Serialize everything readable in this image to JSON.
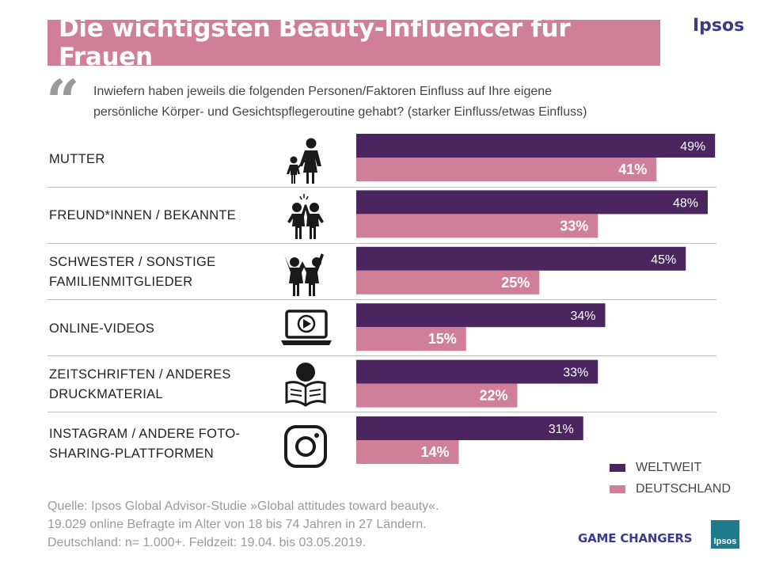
{
  "title": "Die wichtigsten Beauty-Influencer für Frauen",
  "brand": "Ipsos",
  "question": {
    "line1": "Inwiefern haben jeweils die folgenden Personen/Faktoren Einfluss auf Ihre eigene",
    "line2": "persönliche Körper- und Gesichtspflegeroutine gehabt?  (starker Einfluss/etwas Einfluss)"
  },
  "rows": [
    {
      "label1": "MUTTER",
      "label2": "",
      "icon": "mother-child-icon"
    },
    {
      "label1": "FREUND*INNEN / BEKANNTE",
      "label2": "",
      "icon": "friends-high-five-icon"
    },
    {
      "label1": "SCHWESTER / SONSTIGE",
      "label2": "FAMILIENMITGLIEDER",
      "icon": "sisters-icon"
    },
    {
      "label1": "ONLINE-VIDEOS",
      "label2": "",
      "icon": "laptop-video-icon"
    },
    {
      "label1": "ZEITSCHRIFTEN  / ANDERES",
      "label2": "DRUCKMATERIAL",
      "icon": "reader-book-icon"
    },
    {
      "label1": "INSTAGRAM / ANDERE FOTO-",
      "label2": "SHARING-PLATTFORMEN",
      "icon": "instagram-icon"
    }
  ],
  "chart_data": {
    "type": "bar",
    "orientation": "horizontal",
    "categories": [
      "MUTTER",
      "FREUND*INNEN / BEKANNTE",
      "SCHWESTER / SONSTIGE FAMILIENMITGLIEDER",
      "ONLINE-VIDEOS",
      "ZEITSCHRIFTEN / ANDERES DRUCKMATERIAL",
      "INSTAGRAM / ANDERE FOTO-SHARING-PLATTFORMEN"
    ],
    "series": [
      {
        "name": "WELTWEIT",
        "values": [
          49,
          48,
          45,
          34,
          33,
          31
        ],
        "labels": [
          "49%",
          "48%",
          "45%",
          "34%",
          "33%",
          "31%"
        ],
        "color": "#4a2560"
      },
      {
        "name": "DEUTSCHLAND",
        "values": [
          41,
          33,
          25,
          15,
          22,
          14
        ],
        "labels": [
          "41%",
          "33%",
          "25%",
          "15%",
          "22%",
          "14%"
        ],
        "color": "#d07f98"
      }
    ],
    "unit": "%",
    "xlim": [
      0,
      100
    ]
  },
  "legend": {
    "weltweit": "WELTWEIT",
    "deutschland": "DEUTSCHLAND"
  },
  "source": {
    "line1": "Quelle: Ipsos Global Advisor-Studie  »Global attitudes toward beauty«.",
    "line2": "19.029 online Befragte im Alter von 18 bis 74 Jahren in 27 Ländern.",
    "line3": "Deutschland: n= 1.000+. Feldzeit: 19.04. bis 03.05.2019."
  },
  "footer": {
    "tagline": "GAME CHANGERS",
    "logo": "Ipsos"
  },
  "colors": {
    "title_bg": "#d07f98",
    "weltweit": "#4a2560",
    "deutschland": "#d07f98",
    "brand": "#3c3a8c"
  }
}
